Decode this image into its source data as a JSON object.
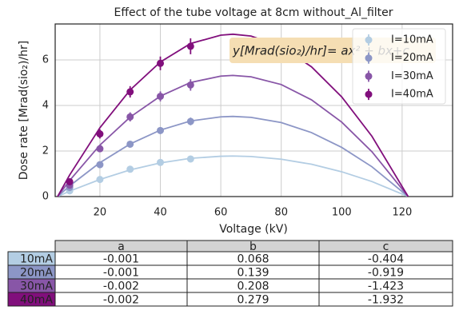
{
  "chart_data": {
    "type": "scatter-fit",
    "title": "Effect of the tube voltage at 8cm without_Al_filter",
    "x_label": "Voltage (kV)",
    "y_label": "Dose rate [Mrad(sio₂)/hr]",
    "annotation": "y[Mrad(sio₂)/hr]= ax² + bx+c",
    "x": [
      10,
      20,
      30,
      40,
      50
    ],
    "fit_x": [
      6,
      10,
      20,
      30,
      40,
      50,
      60,
      64,
      70,
      80,
      90,
      100,
      110,
      122
    ],
    "xlim": [
      5.2,
      136.7
    ],
    "ylim": [
      0,
      7.58
    ],
    "xticks": [
      20,
      40,
      60,
      80,
      100,
      120
    ],
    "yticks": [
      0,
      2,
      4,
      6
    ],
    "grid": true,
    "legend": "upper right",
    "series": [
      {
        "name": "I=10mA",
        "color": "#b3cde3",
        "values": [
          0.25,
          0.75,
          1.2,
          1.5,
          1.65
        ],
        "errors": [
          0.05,
          0.06,
          0.08,
          0.1,
          0.1
        ],
        "fit_values": [
          0,
          0.24,
          0.75,
          1.17,
          1.48,
          1.68,
          1.77,
          1.78,
          1.76,
          1.64,
          1.42,
          1.09,
          0.66,
          0
        ]
      },
      {
        "name": "I=20mA",
        "color": "#8c96c6",
        "values": [
          0.4,
          1.4,
          2.3,
          2.9,
          3.3
        ],
        "errors": [
          0.08,
          0.1,
          0.12,
          0.15,
          0.17
        ],
        "fit_values": [
          0,
          0.47,
          1.49,
          2.31,
          2.92,
          3.32,
          3.5,
          3.52,
          3.48,
          3.25,
          2.81,
          2.16,
          1.31,
          0
        ]
      },
      {
        "name": "I=30mA",
        "color": "#8856a7",
        "values": [
          0.5,
          2.1,
          3.5,
          4.4,
          4.9
        ],
        "errors": [
          0.1,
          0.15,
          0.2,
          0.22,
          0.25
        ],
        "fit_values": [
          0,
          0.71,
          2.26,
          3.49,
          4.41,
          5.01,
          5.29,
          5.32,
          5.26,
          4.92,
          4.25,
          3.27,
          1.97,
          0
        ]
      },
      {
        "name": "I=40mA",
        "color": "#810f7c",
        "values": [
          0.65,
          2.75,
          4.6,
          5.85,
          6.6
        ],
        "errors": [
          0.15,
          0.2,
          0.25,
          0.3,
          0.35
        ],
        "fit_values": [
          0,
          0.95,
          3.02,
          4.68,
          5.91,
          6.72,
          7.09,
          7.13,
          7.05,
          6.59,
          5.7,
          4.38,
          2.65,
          0
        ]
      }
    ]
  },
  "table": {
    "columns": [
      "a",
      "b",
      "c"
    ],
    "row_labels": [
      "10mA",
      "20mA",
      "30mA",
      "40mA"
    ],
    "rows": [
      [
        -0.001,
        0.068,
        -0.404
      ],
      [
        -0.001,
        0.139,
        -0.919
      ],
      [
        -0.002,
        0.208,
        -1.423
      ],
      [
        -0.002,
        0.279,
        -1.932
      ]
    ]
  }
}
